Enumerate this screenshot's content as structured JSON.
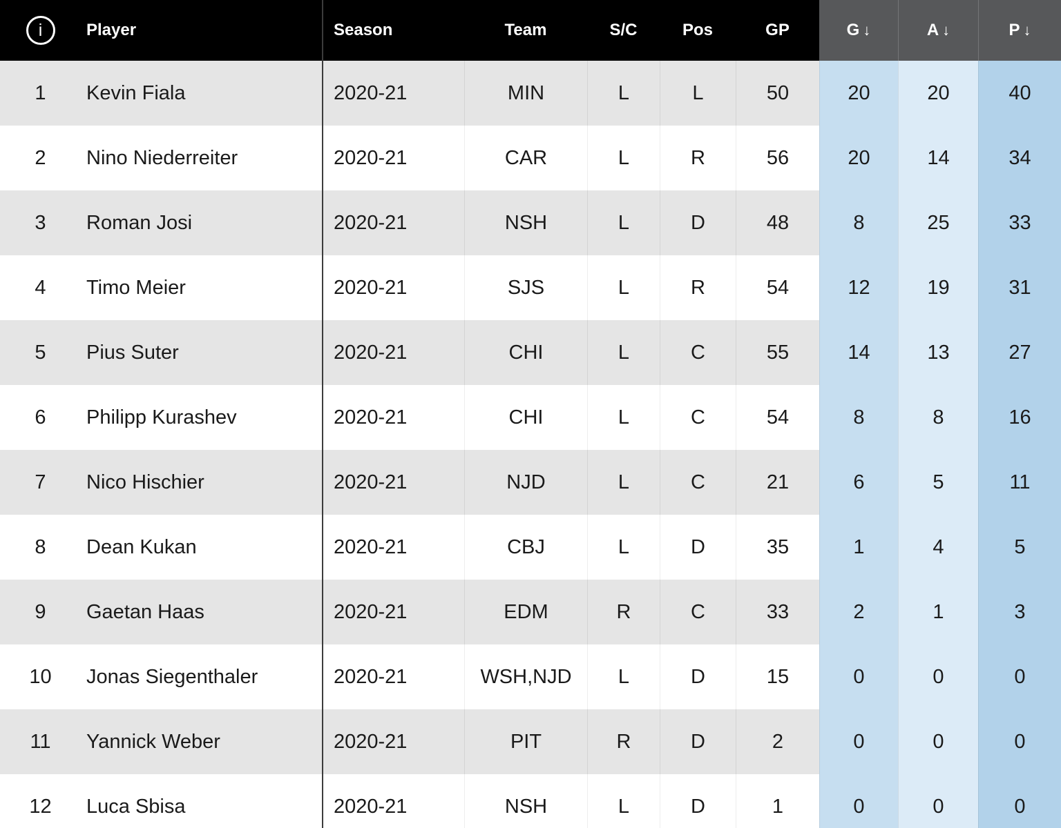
{
  "table": {
    "header": {
      "info_icon": "i",
      "columns": [
        {
          "key": "player",
          "label": "Player"
        },
        {
          "key": "season",
          "label": "Season"
        },
        {
          "key": "team",
          "label": "Team"
        },
        {
          "key": "sc",
          "label": "S/C"
        },
        {
          "key": "pos",
          "label": "Pos"
        },
        {
          "key": "gp",
          "label": "GP"
        },
        {
          "key": "g",
          "label": "G",
          "sorted": true,
          "arrow": "↓"
        },
        {
          "key": "a",
          "label": "A",
          "sorted": true,
          "arrow": "↓"
        },
        {
          "key": "p",
          "label": "P",
          "sorted": true,
          "arrow": "↓"
        }
      ]
    },
    "rows": [
      {
        "rank": "1",
        "player": "Kevin Fiala",
        "season": "2020-21",
        "team": "MIN",
        "sc": "L",
        "pos": "L",
        "gp": "50",
        "g": "20",
        "a": "20",
        "p": "40"
      },
      {
        "rank": "2",
        "player": "Nino Niederreiter",
        "season": "2020-21",
        "team": "CAR",
        "sc": "L",
        "pos": "R",
        "gp": "56",
        "g": "20",
        "a": "14",
        "p": "34"
      },
      {
        "rank": "3",
        "player": "Roman Josi",
        "season": "2020-21",
        "team": "NSH",
        "sc": "L",
        "pos": "D",
        "gp": "48",
        "g": "8",
        "a": "25",
        "p": "33"
      },
      {
        "rank": "4",
        "player": "Timo Meier",
        "season": "2020-21",
        "team": "SJS",
        "sc": "L",
        "pos": "R",
        "gp": "54",
        "g": "12",
        "a": "19",
        "p": "31"
      },
      {
        "rank": "5",
        "player": "Pius Suter",
        "season": "2020-21",
        "team": "CHI",
        "sc": "L",
        "pos": "C",
        "gp": "55",
        "g": "14",
        "a": "13",
        "p": "27"
      },
      {
        "rank": "6",
        "player": "Philipp Kurashev",
        "season": "2020-21",
        "team": "CHI",
        "sc": "L",
        "pos": "C",
        "gp": "54",
        "g": "8",
        "a": "8",
        "p": "16"
      },
      {
        "rank": "7",
        "player": "Nico Hischier",
        "season": "2020-21",
        "team": "NJD",
        "sc": "L",
        "pos": "C",
        "gp": "21",
        "g": "6",
        "a": "5",
        "p": "11"
      },
      {
        "rank": "8",
        "player": "Dean Kukan",
        "season": "2020-21",
        "team": "CBJ",
        "sc": "L",
        "pos": "D",
        "gp": "35",
        "g": "1",
        "a": "4",
        "p": "5"
      },
      {
        "rank": "9",
        "player": "Gaetan Haas",
        "season": "2020-21",
        "team": "EDM",
        "sc": "R",
        "pos": "C",
        "gp": "33",
        "g": "2",
        "a": "1",
        "p": "3"
      },
      {
        "rank": "10",
        "player": "Jonas Siegenthaler",
        "season": "2020-21",
        "team": "WSH,NJD",
        "sc": "L",
        "pos": "D",
        "gp": "15",
        "g": "0",
        "a": "0",
        "p": "0"
      },
      {
        "rank": "11",
        "player": "Yannick Weber",
        "season": "2020-21",
        "team": "PIT",
        "sc": "R",
        "pos": "D",
        "gp": "2",
        "g": "0",
        "a": "0",
        "p": "0"
      },
      {
        "rank": "12",
        "player": "Luca Sbisa",
        "season": "2020-21",
        "team": "NSH",
        "sc": "L",
        "pos": "D",
        "gp": "1",
        "g": "0",
        "a": "0",
        "p": "0"
      }
    ]
  },
  "colors": {
    "header_bg": "#000000",
    "header_text": "#ffffff",
    "sorted_header_bg": "#57585a",
    "row_odd": "#e5e5e5",
    "row_even": "#ffffff",
    "col_g": "#c6def0",
    "col_a": "#dcebf7",
    "col_p": "#b2d2ea",
    "divider": "#3c3c3c",
    "text": "#1a1a1a"
  }
}
